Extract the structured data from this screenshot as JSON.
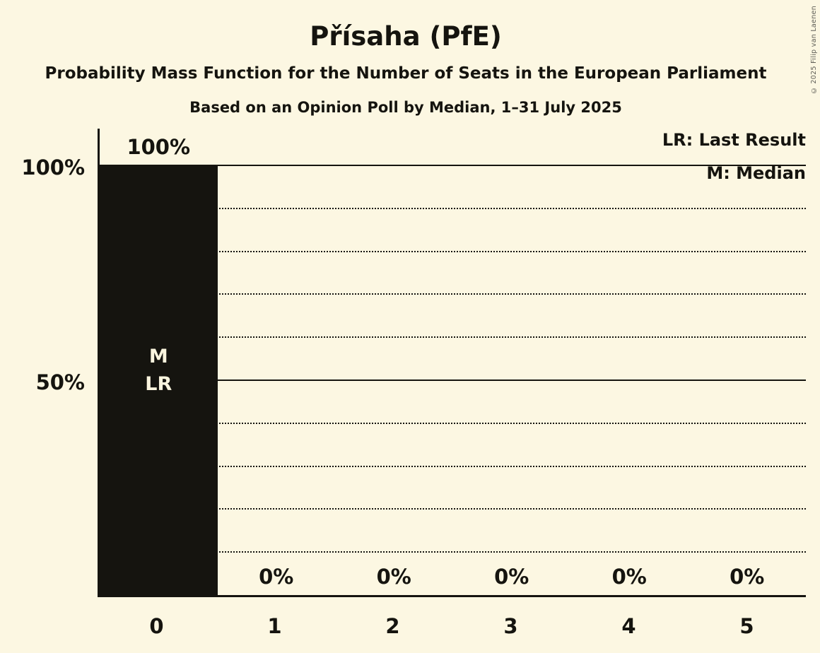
{
  "title": "Přísaha (PfE)",
  "subtitle": "Probability Mass Function for the Number of Seats in the European Parliament",
  "poll_details": "Based on an Opinion Poll by Median, 1–31 July 2025",
  "copyright": "© 2025 Filip van Laenen",
  "legend": {
    "lr": "LR: Last Result",
    "m": "M: Median"
  },
  "colors": {
    "background": "#FCF7E2",
    "ink": "#15140F",
    "bar": "#15140F",
    "bar_text": "#FAF5DE"
  },
  "chart_data": {
    "type": "bar",
    "title": "Přísaha (PfE)",
    "categories": [
      "0",
      "1",
      "2",
      "3",
      "4",
      "5"
    ],
    "values": [
      100,
      0,
      0,
      0,
      0,
      0
    ],
    "bar_labels": [
      "100%",
      "0%",
      "0%",
      "0%",
      "0%",
      "0%"
    ],
    "annotations": [
      {
        "category": "0",
        "lines": [
          "M",
          "LR"
        ]
      }
    ],
    "y_ticks": [
      {
        "value": 100,
        "label": "100%"
      },
      {
        "value": 50,
        "label": "50%"
      }
    ],
    "ylim": [
      0,
      100
    ],
    "gridlines": {
      "dotted_step": 10,
      "solid_at": [
        50,
        100
      ]
    },
    "legend_entries": [
      "LR: Last Result",
      "M: Median"
    ],
    "legend_position": "top-right",
    "xlabel": "",
    "ylabel": ""
  }
}
